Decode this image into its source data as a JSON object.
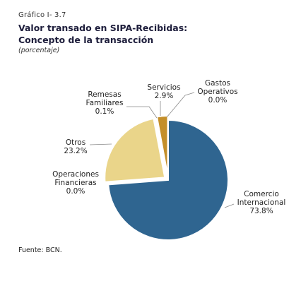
{
  "header": {
    "figure_number": "Gráfico I- 3.7",
    "title_line1": "Valor transado en SIPA-Recibidas:",
    "title_line2": "Concepto de la transacción",
    "subtitle": "(porcentaje)"
  },
  "source": "Fuente: BCN.",
  "chart_data": {
    "type": "pie",
    "title": "Valor transado en SIPA-Recibidas: Concepto de la transacción",
    "unit": "porcentaje",
    "slices": [
      {
        "label_lines": [
          "Comercio",
          "Internacional"
        ],
        "value": 73.8,
        "value_text": "73.8%",
        "color": "#2f6590"
      },
      {
        "label_lines": [
          "Operaciones",
          "Financieras"
        ],
        "value": 0.0,
        "value_text": "0.0%",
        "color": "#4a86b8"
      },
      {
        "label_lines": [
          "Otros"
        ],
        "value": 23.2,
        "value_text": "23.2%",
        "color": "#ead58a"
      },
      {
        "label_lines": [
          "Remesas",
          "Familiares"
        ],
        "value": 0.1,
        "value_text": "0.1%",
        "color": "#9a7a3a"
      },
      {
        "label_lines": [
          "Servicios"
        ],
        "value": 2.9,
        "value_text": "2.9%",
        "color": "#c48f2a"
      },
      {
        "label_lines": [
          "Gastos",
          "Operativos"
        ],
        "value": 0.0,
        "value_text": "0.0%",
        "color": "#7a5a20"
      }
    ]
  }
}
